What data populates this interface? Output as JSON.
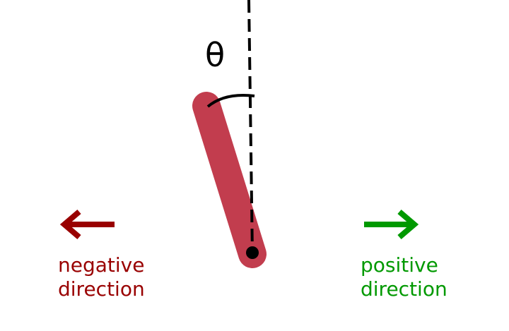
{
  "angle_symbol": "θ",
  "negative": {
    "line1": "negative",
    "line2": "direction",
    "arrow_glyph": "←",
    "color": "#990000"
  },
  "positive": {
    "line1": "positive",
    "line2": "direction",
    "arrow_glyph": "→",
    "color": "#009900"
  },
  "pole": {
    "color": "#c23d4e",
    "pivot_color": "#000000"
  }
}
